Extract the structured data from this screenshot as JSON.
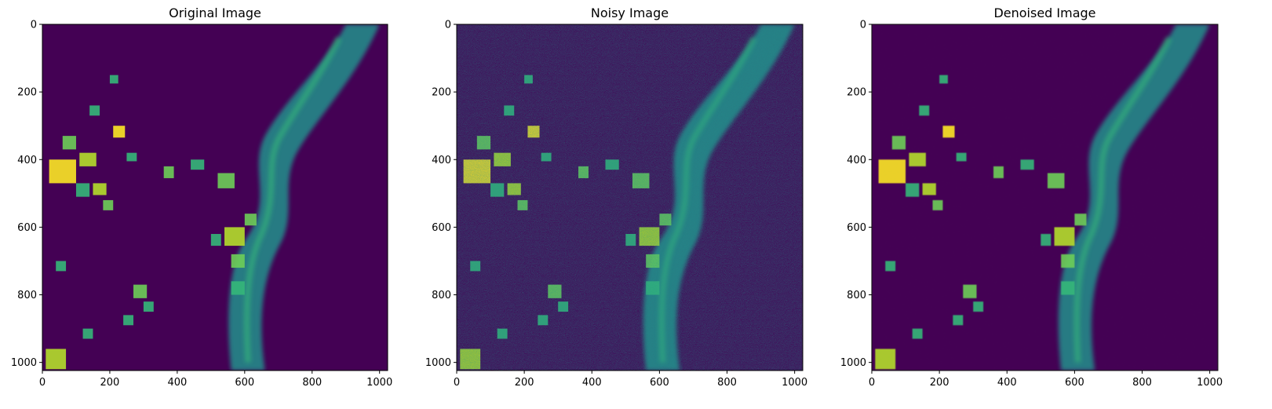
{
  "colors": {
    "background": "#ffffff",
    "viridis_low": "#440154",
    "viridis_mid": "#21918c",
    "viridis_high": "#fde725"
  },
  "chart_data": [
    {
      "type": "heatmap",
      "title": "Original Image",
      "colormap": "viridis",
      "image_size": [
        1024,
        1024
      ],
      "xlim": [
        0,
        1024
      ],
      "ylim": [
        1024,
        0
      ],
      "x_ticks": [
        0,
        200,
        400,
        600,
        800,
        1000
      ],
      "y_ticks": [
        0,
        200,
        400,
        600,
        800,
        1000
      ],
      "noise_level": 0,
      "blur_level": 0
    },
    {
      "type": "heatmap",
      "title": "Noisy Image",
      "colormap": "viridis",
      "image_size": [
        1024,
        1024
      ],
      "xlim": [
        0,
        1024
      ],
      "ylim": [
        1024,
        0
      ],
      "x_ticks": [
        0,
        200,
        400,
        600,
        800,
        1000
      ],
      "y_ticks": [
        0,
        200,
        400,
        600,
        800,
        1000
      ],
      "noise_level": 0.9,
      "blur_level": 0
    },
    {
      "type": "heatmap",
      "title": "Denoised Image",
      "colormap": "viridis",
      "image_size": [
        1024,
        1024
      ],
      "xlim": [
        0,
        1024
      ],
      "ylim": [
        1024,
        0
      ],
      "x_ticks": [
        0,
        200,
        400,
        600,
        800,
        1000
      ],
      "y_ticks": [
        0,
        200,
        400,
        600,
        800,
        1000
      ],
      "noise_level": 0.3,
      "blur_level": 1.2
    }
  ]
}
